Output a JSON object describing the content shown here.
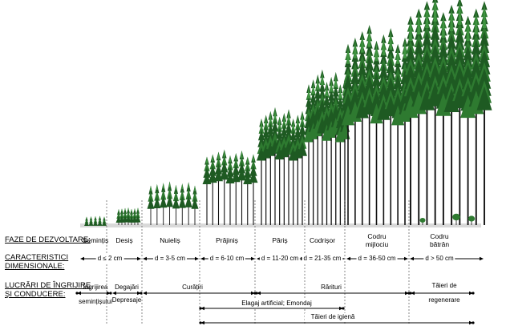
{
  "row_titles": {
    "phases": "FAZE DE DEZVOLTARE:",
    "dimensional_1": "CARACTERISTICI",
    "dimensional_2": "DIMENSIONALE:",
    "works_1": "LUCRĂRI DE ÎNGRIJIRE",
    "works_2": "ŞI CONDUCERE:"
  },
  "phases": [
    {
      "name": "Semințiș",
      "line2": ""
    },
    {
      "name": "Desiș",
      "line2": ""
    },
    {
      "name": "Nuieliș",
      "line2": ""
    },
    {
      "name": "Prăjiniș",
      "line2": ""
    },
    {
      "name": "Păriș",
      "line2": ""
    },
    {
      "name": "Codrișor",
      "line2": ""
    },
    {
      "name": "Codru",
      "line2": "mijlociu"
    },
    {
      "name": "Codru",
      "line2": "bătrân"
    }
  ],
  "dimensions": [
    "d ≤ 2 cm",
    "d = 3-5 cm",
    "d = 6-10 cm",
    "d = 11-20 cm",
    "d = 21-35 cm",
    "d = 36-50 cm",
    "d > 50 cm"
  ],
  "works": {
    "seed_care_1": "Îngrijirea",
    "seed_care_2": "semințișului",
    "releasing": "Degajări",
    "depressing": "Depresaje",
    "cleaning": "Curățiri",
    "thinning": "Rărituri",
    "regen_1": "Tăieri de",
    "regen_2": "regenerare",
    "pruning": "Elagaj artificial; Emondaj",
    "sanitary": "Tăieri de igienă"
  },
  "colors": {
    "tree_dark": "#1e5a22",
    "tree_mid": "#2e7a30",
    "tree_light": "#3f9440",
    "trunk": "#111111",
    "ground": "#d9d9d9"
  }
}
